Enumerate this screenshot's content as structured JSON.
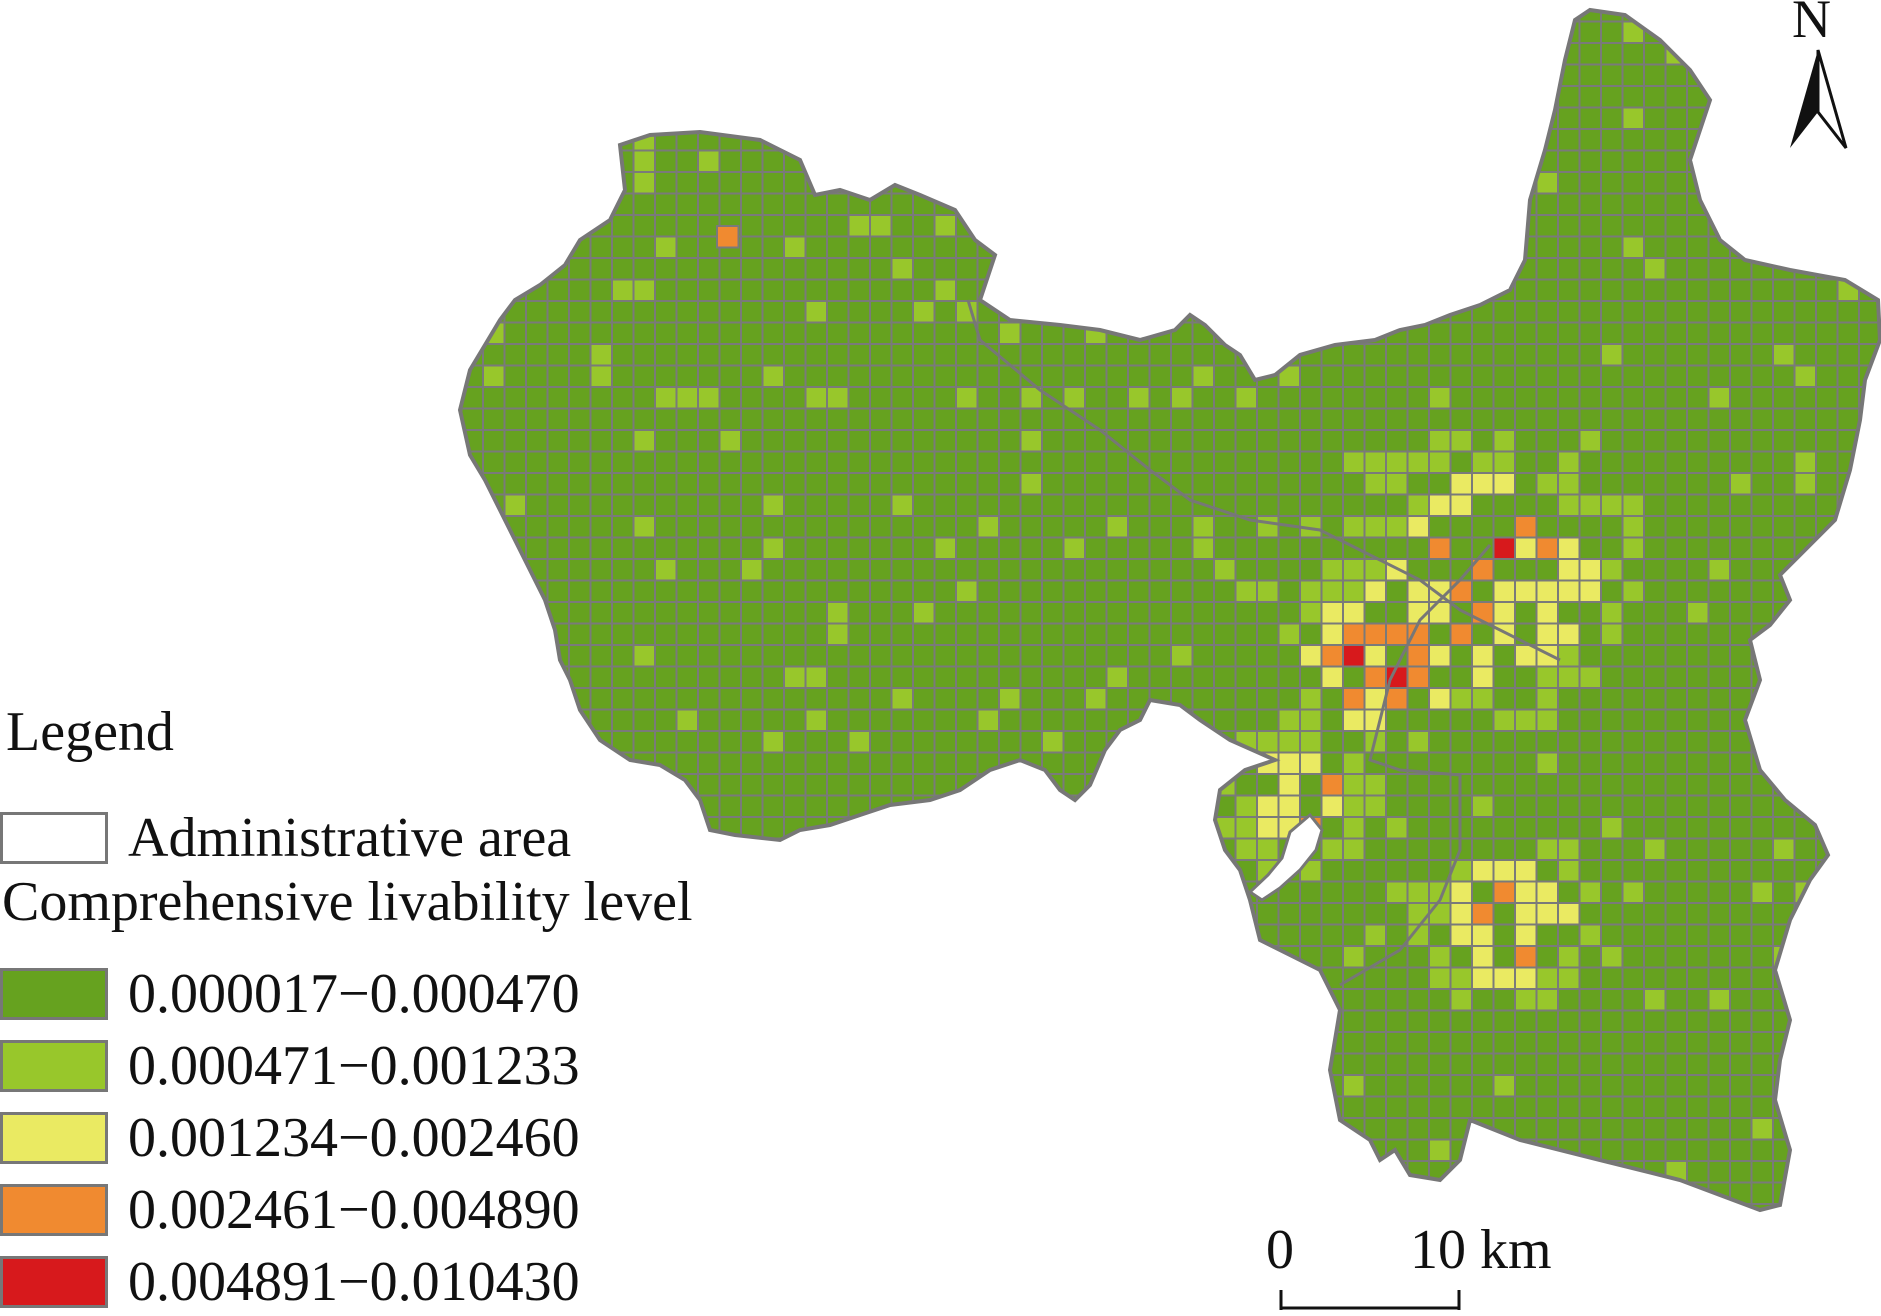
{
  "legend": {
    "title": "Legend",
    "admin_label": "Administrative area",
    "subtitle": "Comprehensive livability level",
    "classes": [
      {
        "label": "0.000017−0.000470",
        "color": "#66a21f"
      },
      {
        "label": "0.000471−0.001233",
        "color": "#98c72b"
      },
      {
        "label": "0.001234−0.002460",
        "color": "#eaea62"
      },
      {
        "label": "0.002461−0.004890",
        "color": "#f08a30"
      },
      {
        "label": "0.004891−0.010430",
        "color": "#d7191c"
      }
    ]
  },
  "north_arrow": {
    "label": "N"
  },
  "scale_bar": {
    "zero_label": "0",
    "end_label": "10 km"
  },
  "colors": {
    "grid_line": "#7a7a7a",
    "boundary": "#777777",
    "admin_fill": "#ffffff"
  }
}
